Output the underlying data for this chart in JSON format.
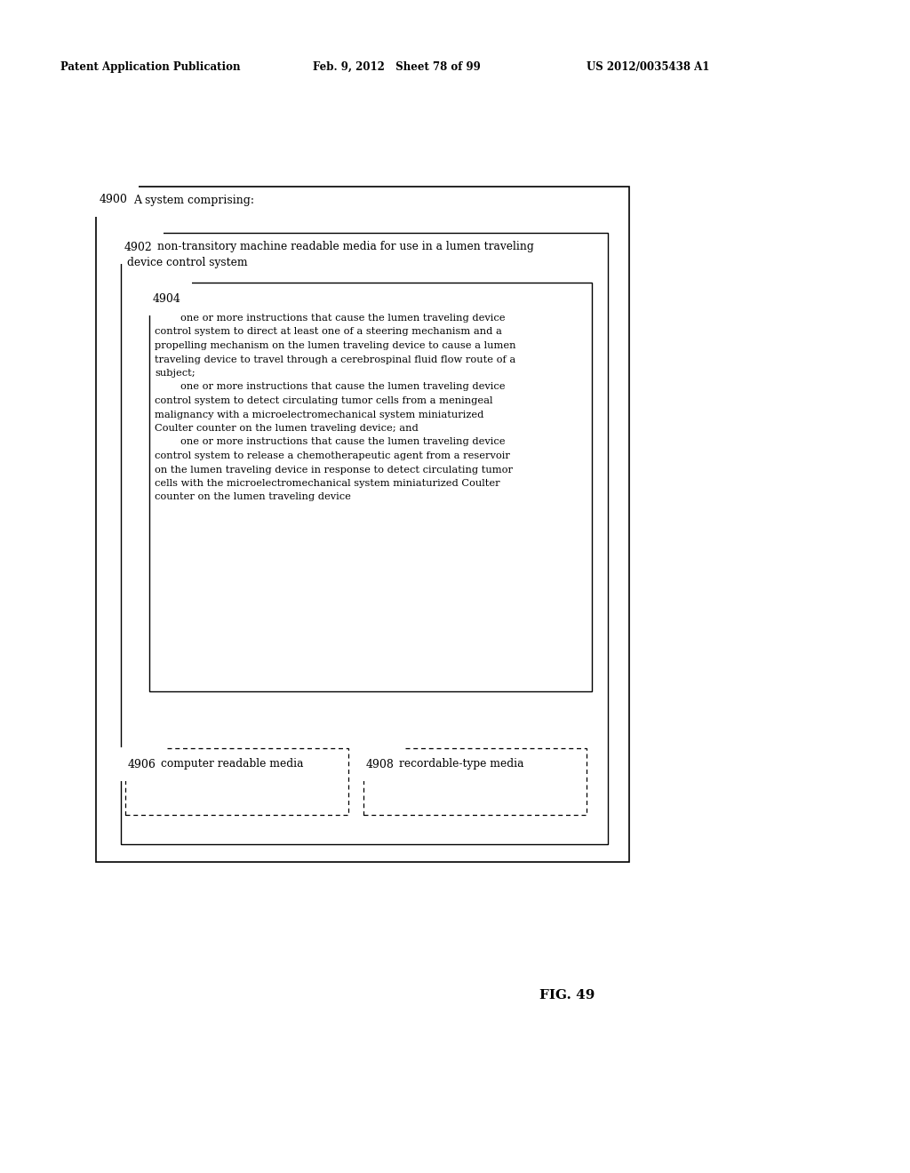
{
  "header_left": "Patent Application Publication",
  "header_mid": "Feb. 9, 2012   Sheet 78 of 99",
  "header_right": "US 2012/0035438 A1",
  "fig_label": "FIG. 49",
  "outer_box_label": "4900",
  "outer_box_text": "A system comprising:",
  "mid_box_label": "4902",
  "mid_box_line1": "non-transitory machine readable media for use in a lumen traveling",
  "mid_box_line2": "device control system",
  "inner_box_label": "4904",
  "inner_box_lines": [
    "        one or more instructions that cause the lumen traveling device",
    "control system to direct at least one of a steering mechanism and a",
    "propelling mechanism on the lumen traveling device to cause a lumen",
    "traveling device to travel through a cerebrospinal fluid flow route of a",
    "subject;",
    "        one or more instructions that cause the lumen traveling device",
    "control system to detect circulating tumor cells from a meningeal",
    "malignancy with a microelectromechanical system miniaturized",
    "Coulter counter on the lumen traveling device; and",
    "        one or more instructions that cause the lumen traveling device",
    "control system to release a chemotherapeutic agent from a reservoir",
    "on the lumen traveling device in response to detect circulating tumor",
    "cells with the microelectromechanical system miniaturized Coulter",
    "counter on the lumen traveling device"
  ],
  "box_left_label": "4906",
  "box_left_text": "computer readable media",
  "box_right_label": "4908",
  "box_right_text": "recordable-type media",
  "bg_color": "#ffffff",
  "text_color": "#000000",
  "box_line_color": "#000000"
}
